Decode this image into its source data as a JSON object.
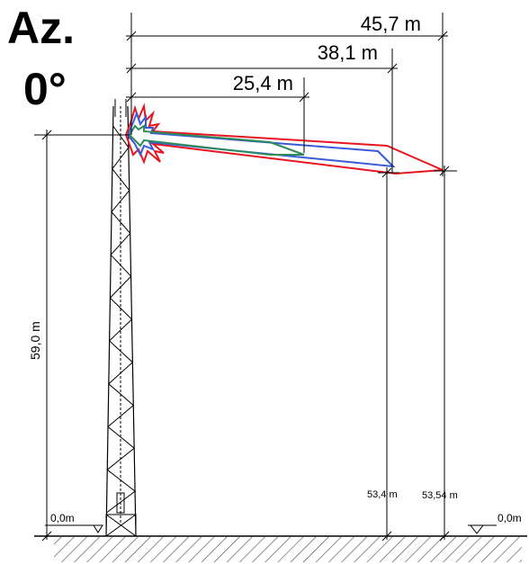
{
  "title": {
    "label": "Az.",
    "azimuth": "0°"
  },
  "dimensions": {
    "horizontal": [
      {
        "label": "45,7 m",
        "color_key": "red"
      },
      {
        "label": "38,1 m",
        "color_key": "blue"
      },
      {
        "label": "25,4 m",
        "color_key": "green"
      }
    ],
    "tower_height": "59,0 m",
    "lobe_end_heights": {
      "blue": "53,4 m",
      "red": "53,54 m"
    },
    "ground_left": "0,0m",
    "ground_right": "0,0m"
  },
  "colors": {
    "red": "#e8141e",
    "blue": "#3a5ad8",
    "green": "#2f8c5a",
    "line": "#000000"
  }
}
